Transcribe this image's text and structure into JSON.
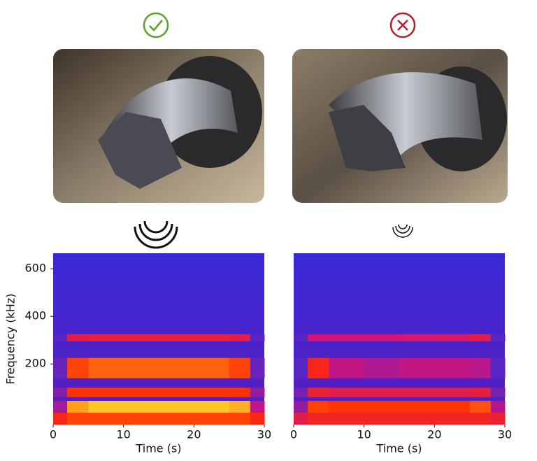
{
  "chart_data": [
    {
      "type": "spectrogram",
      "xlabel": "Time (s)",
      "ylabel": "Frequency (kHz)",
      "xlim": [
        0,
        30
      ],
      "xticks": [
        0,
        10,
        20,
        30
      ],
      "ylim": [
        -55,
        665
      ],
      "yticks": [
        200,
        400,
        600
      ],
      "time_bins": [
        0,
        2,
        5,
        10,
        15,
        20,
        25,
        28,
        30
      ],
      "bands": [
        {
          "low": 295,
          "high": 325,
          "values": [
            0.1,
            0.6,
            0.62,
            0.62,
            0.62,
            0.62,
            0.6,
            0.1
          ]
        },
        {
          "low": 140,
          "high": 225,
          "values": [
            0.15,
            0.78,
            0.82,
            0.82,
            0.82,
            0.82,
            0.78,
            0.15
          ]
        },
        {
          "low": 60,
          "high": 100,
          "values": [
            0.25,
            0.76,
            0.76,
            0.76,
            0.76,
            0.76,
            0.76,
            0.3
          ]
        },
        {
          "low": -5,
          "high": 45,
          "values": [
            0.35,
            0.9,
            0.95,
            0.95,
            0.95,
            0.95,
            0.92,
            0.45
          ]
        },
        {
          "low": -55,
          "high": -5,
          "values": [
            0.7,
            0.78,
            0.78,
            0.78,
            0.78,
            0.78,
            0.78,
            0.72
          ]
        }
      ]
    },
    {
      "type": "spectrogram",
      "xlabel": "Time (s)",
      "xlim": [
        0,
        30
      ],
      "xticks": [
        0,
        10,
        20,
        30
      ],
      "ylim": [
        -55,
        665
      ],
      "time_bins": [
        0,
        2,
        5,
        10,
        15,
        20,
        25,
        28,
        30
      ],
      "bands": [
        {
          "low": 295,
          "high": 325,
          "values": [
            0.1,
            0.5,
            0.5,
            0.5,
            0.52,
            0.55,
            0.6,
            0.1
          ]
        },
        {
          "low": 140,
          "high": 225,
          "values": [
            0.1,
            0.7,
            0.45,
            0.38,
            0.45,
            0.45,
            0.42,
            0.1
          ]
        },
        {
          "low": 60,
          "high": 100,
          "values": [
            0.2,
            0.65,
            0.6,
            0.6,
            0.6,
            0.6,
            0.62,
            0.2
          ]
        },
        {
          "low": -5,
          "high": 45,
          "values": [
            0.3,
            0.78,
            0.76,
            0.76,
            0.76,
            0.76,
            0.8,
            0.4
          ]
        },
        {
          "low": -55,
          "high": -5,
          "values": [
            0.6,
            0.68,
            0.68,
            0.68,
            0.68,
            0.68,
            0.68,
            0.65
          ]
        }
      ]
    }
  ]
}
